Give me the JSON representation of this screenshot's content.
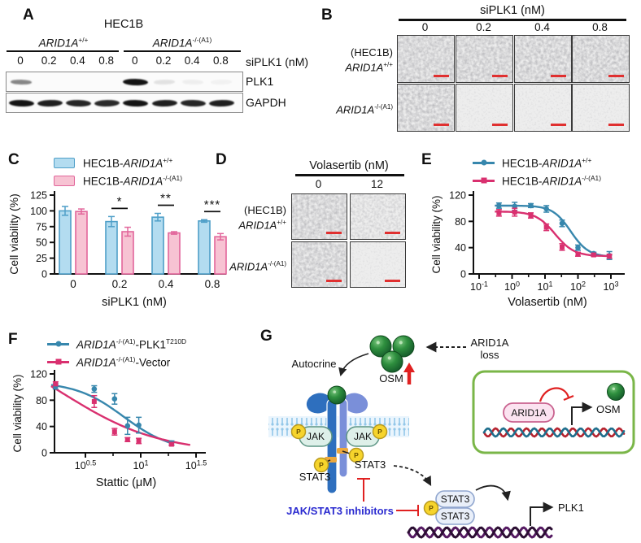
{
  "colors": {
    "blue_series": "#3787ad",
    "pink_series": "#d9306f",
    "bar_blue_fill": "#b3dcf0",
    "bar_blue_edge": "#4f9fc8",
    "bar_pink_fill": "#f7c3d3",
    "bar_pink_edge": "#e2669b",
    "scale_bar_red": "#e03030",
    "red_accent": "#e02121",
    "inhibitor_text_blue": "#2b2bd0",
    "inset_border_green": "#7ab648",
    "sphere_green": "#2e8f3e",
    "dna_purple": "#551a62",
    "dna_red": "#b5232f",
    "dna_teal": "#1f6e8c",
    "p_circle_yellow": "#f6d42c",
    "jak_fill": "#def0e9",
    "arid1a_pill_fill": "#fbe3f0"
  },
  "panelA": {
    "letter": "A",
    "title": "HEC1B",
    "groups": [
      [
        {
          "t": "ARID1A",
          "i": 1
        },
        {
          "t": "+/+",
          "s": 1
        }
      ],
      [
        {
          "t": "ARID1A",
          "i": 1
        },
        {
          "t": "-/-(A1)",
          "s": 1
        }
      ]
    ],
    "lane_doses": [
      "0",
      "0.2",
      "0.4",
      "0.8",
      "0",
      "0.2",
      "0.4",
      "0.8"
    ],
    "dose_axis_label": "siPLK1 (nM)",
    "blots": [
      {
        "label": "PLK1",
        "bands": [
          0.5,
          0,
          0,
          0,
          1,
          0.1,
          0.05,
          0.04
        ]
      },
      {
        "label": "GAPDH",
        "bands": [
          1,
          0.95,
          0.92,
          0.9,
          1,
          0.95,
          0.92,
          0.95
        ]
      }
    ]
  },
  "panelB": {
    "letter": "B",
    "header": "siPLK1 (nM)",
    "doses": [
      "0",
      "0.2",
      "0.4",
      "0.8"
    ],
    "rows": [
      {
        "lines": [
          [
            {
              "t": "(HEC1B)"
            }
          ],
          [
            {
              "t": "ARID1A",
              "i": 1
            },
            {
              "t": "+/+",
              "s": 1
            }
          ]
        ],
        "densities": [
          "dense",
          "dense",
          "dense",
          "dense"
        ]
      },
      {
        "lines": [
          [
            {
              "t": "ARID1A",
              "i": 1
            },
            {
              "t": "-/-(A1)",
              "s": 1
            }
          ]
        ],
        "densities": [
          "dense",
          "sparse",
          "sparse",
          "sparse"
        ]
      }
    ]
  },
  "panelC": {
    "letter": "C",
    "legend": [
      {
        "segs": [
          {
            "t": "HEC1B-"
          },
          {
            "t": "ARID1A",
            "i": 1
          },
          {
            "t": "+/+",
            "s": 1
          }
        ]
      },
      {
        "segs": [
          {
            "t": "HEC1B-"
          },
          {
            "t": "ARID1A",
            "i": 1
          },
          {
            "t": "-/-(A1)",
            "s": 1
          }
        ]
      }
    ]
  },
  "panelD": {
    "letter": "D",
    "header": "Volasertib (nM)",
    "doses": [
      "0",
      "12"
    ],
    "rows": [
      {
        "lines": [
          [
            {
              "t": "(HEC1B)"
            }
          ],
          [
            {
              "t": "ARID1A",
              "i": 1
            },
            {
              "t": "+/+",
              "s": 1
            }
          ]
        ],
        "densities": [
          "dense",
          "medium"
        ]
      },
      {
        "lines": [
          [
            {
              "t": "ARID1A",
              "i": 1
            },
            {
              "t": "-/-(A1)",
              "s": 1
            }
          ]
        ],
        "densities": [
          "dense",
          "sparse"
        ]
      }
    ]
  },
  "panelE": {
    "letter": "E",
    "legend": [
      {
        "segs": [
          {
            "t": "HEC1B-"
          },
          {
            "t": "ARID1A",
            "i": 1
          },
          {
            "t": "+/+",
            "s": 1
          }
        ]
      },
      {
        "segs": [
          {
            "t": "HEC1B-"
          },
          {
            "t": "ARID1A",
            "i": 1
          },
          {
            "t": "-/-(A1)",
            "s": 1
          }
        ]
      }
    ]
  },
  "panelF": {
    "letter": "F",
    "legend": [
      {
        "segs": [
          {
            "t": "ARID1A",
            "i": 1
          },
          {
            "t": "-/-(A1)",
            "s": 1
          },
          {
            "t": "-PLK1"
          },
          {
            "t": "T210D",
            "s": 1
          }
        ]
      },
      {
        "segs": [
          {
            "t": "ARID1A",
            "i": 1
          },
          {
            "t": "-/-(A1)",
            "s": 1
          },
          {
            "t": "-Vector"
          }
        ]
      }
    ]
  },
  "panelG": {
    "letter": "G",
    "autocrine": "Autocrine",
    "osm": "OSM",
    "arid1a_loss_line1": "ARID1A",
    "arid1a_loss_line2": "loss",
    "jak": "JAK",
    "p": "P",
    "stat3": "STAT3",
    "inhibitors": "JAK/STAT3 inhibitors",
    "plk1": "PLK1",
    "inset_arid1a": "ARID1A",
    "inset_osm": "OSM"
  },
  "chart_data": [
    {
      "id": "C",
      "type": "bar",
      "categories": [
        "0",
        "0.2",
        "0.4",
        "0.8"
      ],
      "series": [
        {
          "name": "HEC1B-ARID1A+/+",
          "fill": "#b3dcf0",
          "edge": "#4f9fc8",
          "values": [
            100,
            83,
            90,
            84
          ],
          "errors": [
            7,
            8,
            6,
            2
          ]
        },
        {
          "name": "HEC1B-ARID1A-/-(A1)",
          "fill": "#f7c3d3",
          "edge": "#e2669b",
          "values": [
            99,
            67,
            65,
            59
          ],
          "errors": [
            4,
            7,
            2,
            5
          ]
        }
      ],
      "significance": [
        "",
        "*",
        "**",
        "***"
      ],
      "title": "",
      "xlabel": "siPLK1 (nM)",
      "ylabel": "Cell viability (%)",
      "ylim": [
        0,
        125
      ],
      "yticks": [
        0,
        25,
        50,
        75,
        100,
        125
      ],
      "grid": false,
      "legend_position": "top"
    },
    {
      "id": "E",
      "type": "line",
      "x": [
        0.4,
        1.2,
        3.7,
        11,
        33,
        100,
        300,
        900
      ],
      "series": [
        {
          "name": "HEC1B-ARID1A+/+",
          "color": "#3787ad",
          "marker": "circle",
          "values": [
            104,
            103,
            104,
            99,
            77,
            40,
            31,
            28
          ],
          "errors": [
            4,
            6,
            3,
            5,
            5,
            4,
            2,
            6
          ],
          "fit": {
            "top": 104,
            "bottom": 26,
            "ec50": 60,
            "hill": 1.6,
            "range": [
              0.3,
              1000
            ]
          }
        },
        {
          "name": "HEC1B-ARID1A-/-(A1)",
          "color": "#d9306f",
          "marker": "square",
          "values": [
            93,
            94,
            89,
            71,
            41,
            30,
            29,
            27
          ],
          "errors": [
            5,
            6,
            4,
            5,
            5,
            3,
            2,
            3
          ],
          "fit": {
            "top": 95,
            "bottom": 27,
            "ec50": 20,
            "hill": 1.5,
            "range": [
              0.3,
              1000
            ]
          }
        }
      ],
      "title": "",
      "xlabel": "Volasertib (nM)",
      "ylabel": "Cell viability (%)",
      "xscale": "log",
      "xticks": [
        "10^-1",
        "10^0",
        "10^1",
        "10^2",
        "10^3"
      ],
      "ylim": [
        0,
        120
      ],
      "yticks": [
        0,
        40,
        80,
        120
      ],
      "grid": false,
      "legend_position": "top"
    },
    {
      "id": "F",
      "type": "line",
      "x": [
        1.7,
        3.8,
        5.8,
        7.6,
        9.6,
        19
      ],
      "series": [
        {
          "name": "ARID1A-/-(A1)-PLK1 T210D",
          "color": "#3787ad",
          "marker": "circle",
          "values": [
            101,
            97,
            82,
            41,
            42,
            15
          ],
          "errors": [
            4,
            5,
            8,
            13,
            12,
            3
          ],
          "fit": {
            "top": 108,
            "bottom": 2,
            "ec50": 7,
            "hill": 2,
            "range": [
              1.55,
              20
            ]
          }
        },
        {
          "name": "ARID1A-/-(A1)-Vector",
          "color": "#d9306f",
          "marker": "square",
          "values": [
            105,
            78,
            32,
            20,
            18,
            13
          ],
          "errors": [
            3,
            9,
            5,
            3,
            4,
            2
          ],
          "fit": {
            "top": 180,
            "bottom": 0,
            "ec50": 2,
            "hill": 1,
            "range": [
              1.55,
              28
            ]
          }
        }
      ],
      "title": "",
      "xlabel": "Stattic (μM)",
      "ylabel": "Cell viability (%)",
      "xscale": "log",
      "xticks": [
        "10^0.5",
        "10^1",
        "10^1.5"
      ],
      "ylim": [
        0,
        120
      ],
      "yticks": [
        0,
        40,
        80,
        120
      ],
      "grid": false,
      "legend_position": "top"
    }
  ]
}
